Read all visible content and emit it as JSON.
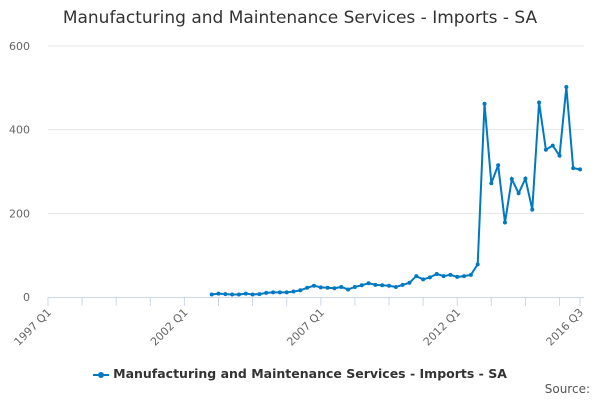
{
  "chart_data": {
    "type": "line",
    "title": "Manufacturing and Maintenance Services - Imports - SA",
    "xlabel": "",
    "ylabel": "",
    "ylim": [
      0,
      600
    ],
    "yticks": [
      0,
      200,
      400,
      600
    ],
    "xticks": [
      "1997 Q1",
      "2002 Q1",
      "2007 Q1",
      "2012 Q1",
      "2016 Q3"
    ],
    "x_start": "1997 Q1",
    "x_end": "2016 Q3",
    "data_start": "2003 Q1",
    "grid": true,
    "legend_position": "bottom",
    "color": "#0079c1",
    "series": [
      {
        "name": "Manufacturing and Maintenance Services - Imports - SA",
        "values": [
          6,
          8,
          7,
          6,
          6,
          8,
          6,
          7,
          10,
          11,
          11,
          11,
          13,
          16,
          22,
          27,
          23,
          22,
          21,
          24,
          18,
          24,
          28,
          33,
          29,
          28,
          27,
          24,
          29,
          34,
          50,
          42,
          47,
          55,
          50,
          53,
          48,
          50,
          53,
          78,
          462,
          272,
          315,
          178,
          282,
          248,
          283,
          209,
          465,
          352,
          362,
          338,
          502,
          308,
          305
        ]
      }
    ]
  },
  "footer": {
    "source": "Source:"
  }
}
